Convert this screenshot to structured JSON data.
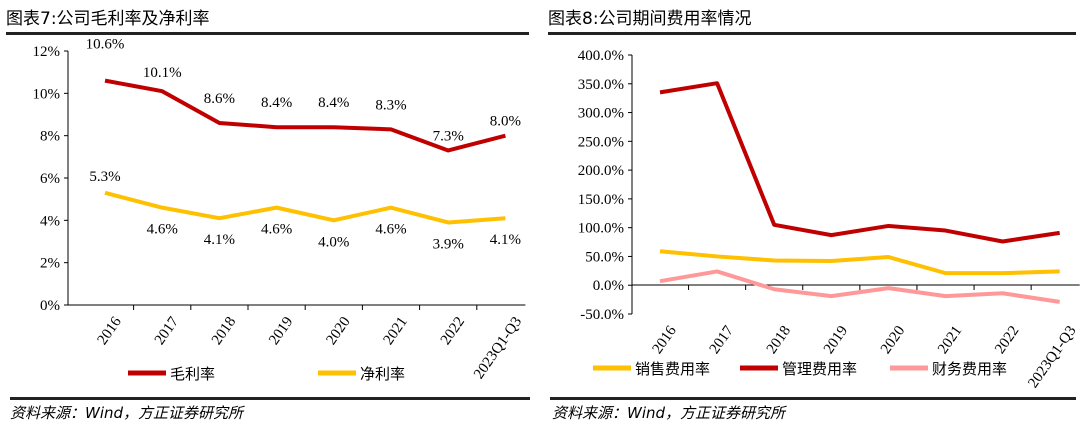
{
  "chart_data": [
    {
      "type": "line",
      "title": "图表7:公司毛利率及净利率",
      "source": "资料来源：Wind，方正证券研究所",
      "categories": [
        "2016",
        "2017",
        "2018",
        "2019",
        "2020",
        "2021",
        "2022",
        "2023Q1-Q3"
      ],
      "ylim": [
        0,
        12
      ],
      "yticks": [
        "0%",
        "2%",
        "4%",
        "6%",
        "8%",
        "10%",
        "12%"
      ],
      "legend_position": "bottom",
      "series": [
        {
          "name": "毛利率",
          "color": "#C00000",
          "values": [
            10.6,
            10.1,
            8.6,
            8.4,
            8.4,
            8.3,
            7.3,
            8.0
          ],
          "labels": [
            "10.6%",
            "10.1%",
            "8.6%",
            "8.4%",
            "8.4%",
            "8.3%",
            "7.3%",
            "8.0%"
          ]
        },
        {
          "name": "净利率",
          "color": "#FFC000",
          "values": [
            5.3,
            4.6,
            4.1,
            4.6,
            4.0,
            4.6,
            3.9,
            4.1
          ],
          "labels": [
            "5.3%",
            "4.6%",
            "4.1%",
            "4.6%",
            "4.0%",
            "4.6%",
            "3.9%",
            "4.1%"
          ]
        }
      ]
    },
    {
      "type": "line",
      "title": "图表8:公司期间费用率情况",
      "source": "资料来源：Wind，方正证券研究所",
      "categories": [
        "2016",
        "2017",
        "2018",
        "2019",
        "2020",
        "2021",
        "2022",
        "2023Q1-Q3"
      ],
      "ylim": [
        -50,
        400
      ],
      "yticks": [
        "-50.0%",
        "0.0%",
        "50.0%",
        "100.0%",
        "150.0%",
        "200.0%",
        "250.0%",
        "300.0%",
        "350.0%",
        "400.0%"
      ],
      "legend_position": "bottom",
      "series": [
        {
          "name": "销售费用率",
          "color": "#FFC000",
          "values": [
            59,
            50,
            43,
            42,
            49,
            21,
            21,
            24
          ]
        },
        {
          "name": "管理费用率",
          "color": "#C00000",
          "values": [
            335,
            351,
            105,
            87,
            103,
            95,
            76,
            91
          ]
        },
        {
          "name": "财务费用率",
          "color": "#FF9999",
          "values": [
            7,
            24,
            -7,
            -19,
            -5,
            -19,
            -14,
            -29
          ]
        }
      ]
    }
  ]
}
